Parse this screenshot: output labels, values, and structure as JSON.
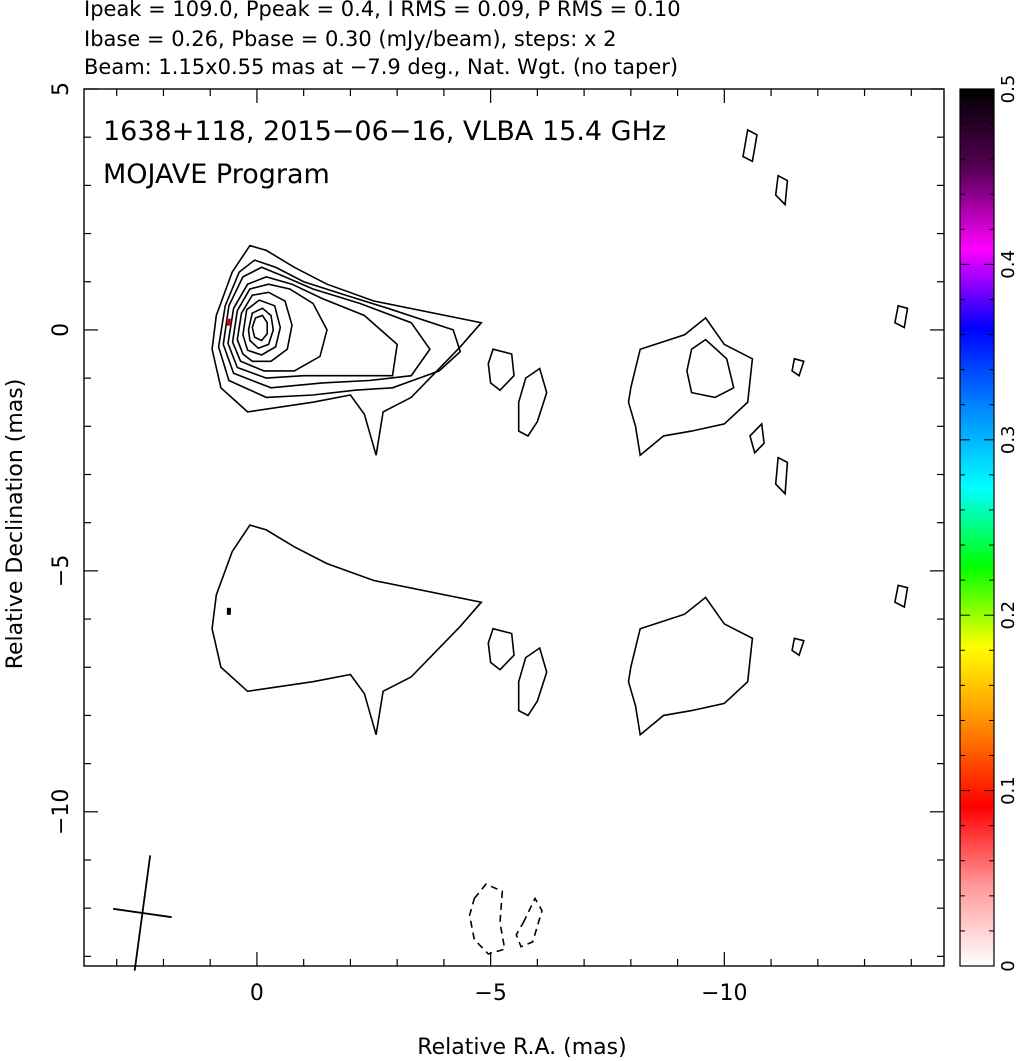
{
  "header": {
    "line1": "Ipeak = 109.0, Ppeak = 0.4, I RMS = 0.09, P RMS = 0.10",
    "line2": "Ibase = 0.26, Pbase = 0.30 (mJy/beam), steps: x 2",
    "line3": "Beam: 1.15x0.55 mas at −7.9 deg., Nat. Wgt. (no taper)"
  },
  "chart_data": {
    "type": "contour",
    "title": "1638+118, 2015−06−16, VLBA 15.4 GHz",
    "subtitle": "MOJAVE Program",
    "xlabel": "Relative R.A. (mas)",
    "ylabel": "Relative Declination (mas)",
    "xlim": [
      3.7,
      -14.7
    ],
    "ylim": [
      -13.2,
      5
    ],
    "x_ticks": [
      {
        "value": 0,
        "label": "0"
      },
      {
        "value": -5,
        "label": "−5"
      },
      {
        "value": -10,
        "label": "−10"
      }
    ],
    "y_ticks": [
      {
        "value": 5,
        "label": "5"
      },
      {
        "value": 0,
        "label": "0"
      },
      {
        "value": -5,
        "label": "−5"
      },
      {
        "value": -10,
        "label": "−10"
      }
    ],
    "colorbar": {
      "range": [
        0,
        0.5
      ],
      "ticks": [
        {
          "value": 0,
          "label": "0"
        },
        {
          "value": 0.1,
          "label": "0.1"
        },
        {
          "value": 0.2,
          "label": "0.2"
        },
        {
          "value": 0.3,
          "label": "0.3"
        },
        {
          "value": 0.4,
          "label": "0.4"
        },
        {
          "value": 0.5,
          "label": "0.5"
        }
      ],
      "colors": [
        "#ffffff",
        "#ff9999",
        "#ff0000",
        "#ff8800",
        "#ffff00",
        "#00ff00",
        "#00ffff",
        "#0088ff",
        "#0000ff",
        "#ff00ff",
        "#550055",
        "#000000"
      ]
    },
    "beam": {
      "major": 1.15,
      "minor": 0.55,
      "pa_deg": -7.9,
      "center": [
        2.45,
        -12.1
      ]
    },
    "contour_levels_mJy": [
      0.26,
      0.52,
      1.04,
      2.08,
      4.16,
      8.32,
      16.64,
      33.28,
      66.56
    ],
    "total_intensity_contours": [
      [
        [
          0.96,
          -0.4
        ],
        [
          0.87,
          0.3
        ],
        [
          0.53,
          1.2
        ],
        [
          0.15,
          1.75
        ],
        [
          -0.2,
          1.65
        ],
        [
          -0.8,
          1.3
        ],
        [
          -1.5,
          0.95
        ],
        [
          -2.5,
          0.6
        ],
        [
          -4.8,
          0.15
        ],
        [
          -4.35,
          -0.35
        ],
        [
          -3.3,
          -1.4
        ],
        [
          -2.7,
          -1.7
        ],
        [
          -2.55,
          -2.6
        ],
        [
          -2.3,
          -1.75
        ],
        [
          -2.0,
          -1.35
        ],
        [
          -1.2,
          -1.5
        ],
        [
          0.2,
          -1.7
        ],
        [
          0.77,
          -1.2
        ],
        [
          0.96,
          -0.4
        ]
      ],
      [
        [
          0.82,
          -0.35
        ],
        [
          0.68,
          0.5
        ],
        [
          0.38,
          1.2
        ],
        [
          0.05,
          1.45
        ],
        [
          -0.4,
          1.3
        ],
        [
          -1.0,
          1.0
        ],
        [
          -1.8,
          0.75
        ],
        [
          -2.8,
          0.45
        ],
        [
          -4.2,
          0.0
        ],
        [
          -4.35,
          -0.45
        ],
        [
          -3.9,
          -0.85
        ],
        [
          -2.9,
          -1.2
        ],
        [
          -2.1,
          -1.25
        ],
        [
          -1.2,
          -1.35
        ],
        [
          -0.2,
          -1.4
        ],
        [
          0.6,
          -1.05
        ],
        [
          0.82,
          -0.35
        ]
      ],
      [
        [
          0.72,
          -0.3
        ],
        [
          0.6,
          0.5
        ],
        [
          0.3,
          1.1
        ],
        [
          -0.1,
          1.3
        ],
        [
          -0.6,
          1.1
        ],
        [
          -1.2,
          0.85
        ],
        [
          -2.2,
          0.55
        ],
        [
          -3.3,
          0.15
        ],
        [
          -3.7,
          -0.4
        ],
        [
          -3.3,
          -0.95
        ],
        [
          -2.4,
          -1.05
        ],
        [
          -1.4,
          -1.1
        ],
        [
          -0.3,
          -1.2
        ],
        [
          0.5,
          -0.9
        ],
        [
          0.72,
          -0.3
        ]
      ],
      [
        [
          0.62,
          -0.28
        ],
        [
          0.5,
          0.45
        ],
        [
          0.2,
          0.95
        ],
        [
          -0.2,
          1.1
        ],
        [
          -0.75,
          0.95
        ],
        [
          -1.4,
          0.65
        ],
        [
          -2.3,
          0.3
        ],
        [
          -3.0,
          -0.3
        ],
        [
          -2.9,
          -0.95
        ],
        [
          -2.0,
          -0.95
        ],
        [
          -1.0,
          -0.95
        ],
        [
          -0.2,
          -1.0
        ],
        [
          0.42,
          -0.78
        ],
        [
          0.62,
          -0.28
        ]
      ],
      [
        [
          0.52,
          -0.25
        ],
        [
          0.42,
          0.4
        ],
        [
          0.15,
          0.85
        ],
        [
          -0.25,
          0.95
        ],
        [
          -0.7,
          0.85
        ],
        [
          -1.2,
          0.55
        ],
        [
          -1.5,
          0.0
        ],
        [
          -1.35,
          -0.55
        ],
        [
          -0.8,
          -0.85
        ],
        [
          -0.15,
          -0.85
        ],
        [
          0.35,
          -0.65
        ],
        [
          0.52,
          -0.25
        ]
      ],
      [
        [
          0.42,
          -0.2
        ],
        [
          0.33,
          0.35
        ],
        [
          0.1,
          0.72
        ],
        [
          -0.25,
          0.78
        ],
        [
          -0.6,
          0.6
        ],
        [
          -0.75,
          0.1
        ],
        [
          -0.65,
          -0.4
        ],
        [
          -0.3,
          -0.65
        ],
        [
          0.1,
          -0.65
        ],
        [
          0.3,
          -0.5
        ],
        [
          0.42,
          -0.2
        ]
      ],
      [
        [
          0.3,
          -0.1
        ],
        [
          0.22,
          0.42
        ],
        [
          -0.05,
          0.62
        ],
        [
          -0.38,
          0.5
        ],
        [
          -0.5,
          0.05
        ],
        [
          -0.4,
          -0.35
        ],
        [
          -0.1,
          -0.52
        ],
        [
          0.2,
          -0.42
        ],
        [
          0.3,
          -0.1
        ]
      ],
      [
        [
          0.18,
          0.0
        ],
        [
          0.1,
          0.35
        ],
        [
          -0.12,
          0.45
        ],
        [
          -0.3,
          0.3
        ],
        [
          -0.35,
          0.0
        ],
        [
          -0.25,
          -0.3
        ],
        [
          -0.03,
          -0.38
        ],
        [
          0.15,
          -0.22
        ],
        [
          0.18,
          0.0
        ]
      ],
      [
        [
          0.1,
          0.05
        ],
        [
          0.03,
          0.25
        ],
        [
          -0.12,
          0.3
        ],
        [
          -0.22,
          0.15
        ],
        [
          -0.22,
          -0.08
        ],
        [
          -0.1,
          -0.22
        ],
        [
          0.05,
          -0.15
        ],
        [
          0.1,
          0.05
        ]
      ],
      [
        [
          -5.05,
          -0.4
        ],
        [
          -5.45,
          -0.5
        ],
        [
          -5.5,
          -0.95
        ],
        [
          -5.2,
          -1.25
        ],
        [
          -5.0,
          -1.1
        ],
        [
          -4.95,
          -0.7
        ],
        [
          -5.05,
          -0.4
        ]
      ],
      [
        [
          -5.75,
          -1.0
        ],
        [
          -6.05,
          -0.8
        ],
        [
          -6.2,
          -1.3
        ],
        [
          -6.0,
          -1.9
        ],
        [
          -5.8,
          -2.2
        ],
        [
          -5.6,
          -2.1
        ],
        [
          -5.6,
          -1.5
        ],
        [
          -5.75,
          -1.0
        ]
      ],
      [
        [
          -8.2,
          -0.4
        ],
        [
          -9.15,
          -0.1
        ],
        [
          -9.6,
          0.25
        ],
        [
          -10.0,
          -0.3
        ],
        [
          -10.6,
          -0.6
        ],
        [
          -10.5,
          -1.5
        ],
        [
          -10.0,
          -1.95
        ],
        [
          -9.3,
          -2.1
        ],
        [
          -8.7,
          -2.2
        ],
        [
          -8.2,
          -2.6
        ],
        [
          -8.1,
          -2.0
        ],
        [
          -7.95,
          -1.5
        ],
        [
          -8.0,
          -1.2
        ],
        [
          -8.2,
          -0.4
        ]
      ],
      [
        [
          -9.3,
          -0.4
        ],
        [
          -9.6,
          -0.2
        ],
        [
          -10.05,
          -0.6
        ],
        [
          -10.2,
          -1.2
        ],
        [
          -9.8,
          -1.4
        ],
        [
          -9.3,
          -1.3
        ],
        [
          -9.2,
          -0.85
        ],
        [
          -9.3,
          -0.4
        ]
      ],
      [
        [
          -10.5,
          4.15
        ],
        [
          -10.7,
          4.05
        ],
        [
          -10.6,
          3.5
        ],
        [
          -10.4,
          3.6
        ],
        [
          -10.5,
          4.15
        ]
      ],
      [
        [
          -11.15,
          3.2
        ],
        [
          -11.35,
          3.1
        ],
        [
          -11.3,
          2.6
        ],
        [
          -11.1,
          2.8
        ],
        [
          -11.15,
          3.2
        ]
      ],
      [
        [
          -11.15,
          -2.65
        ],
        [
          -11.35,
          -2.75
        ],
        [
          -11.3,
          -3.4
        ],
        [
          -11.1,
          -3.2
        ],
        [
          -11.15,
          -2.65
        ]
      ],
      [
        [
          -10.8,
          -1.95
        ],
        [
          -10.55,
          -2.2
        ],
        [
          -10.65,
          -2.55
        ],
        [
          -10.85,
          -2.35
        ],
        [
          -10.8,
          -1.95
        ]
      ],
      [
        [
          -11.7,
          -0.65
        ],
        [
          -11.6,
          -0.95
        ],
        [
          -11.45,
          -0.85
        ],
        [
          -11.5,
          -0.6
        ],
        [
          -11.7,
          -0.65
        ]
      ],
      [
        [
          -13.92,
          0.45
        ],
        [
          -13.72,
          0.5
        ],
        [
          -13.65,
          0.15
        ],
        [
          -13.85,
          0.05
        ],
        [
          -13.92,
          0.45
        ]
      ]
    ],
    "polarization_contours": [
      [
        [
          0.96,
          -6.2
        ],
        [
          0.87,
          -5.5
        ],
        [
          0.53,
          -4.6
        ],
        [
          0.15,
          -4.05
        ],
        [
          -0.2,
          -4.15
        ],
        [
          -0.8,
          -4.5
        ],
        [
          -1.5,
          -4.85
        ],
        [
          -2.5,
          -5.2
        ],
        [
          -4.8,
          -5.65
        ],
        [
          -4.35,
          -6.15
        ],
        [
          -3.3,
          -7.2
        ],
        [
          -2.7,
          -7.5
        ],
        [
          -2.55,
          -8.4
        ],
        [
          -2.3,
          -7.55
        ],
        [
          -2.0,
          -7.15
        ],
        [
          -1.2,
          -7.3
        ],
        [
          0.2,
          -7.5
        ],
        [
          0.77,
          -7.0
        ],
        [
          0.96,
          -6.2
        ]
      ],
      [
        [
          -5.05,
          -6.2
        ],
        [
          -5.45,
          -6.3
        ],
        [
          -5.5,
          -6.75
        ],
        [
          -5.2,
          -7.05
        ],
        [
          -5.0,
          -6.9
        ],
        [
          -4.95,
          -6.5
        ],
        [
          -5.05,
          -6.2
        ]
      ],
      [
        [
          -5.75,
          -6.8
        ],
        [
          -6.05,
          -6.6
        ],
        [
          -6.2,
          -7.1
        ],
        [
          -6.0,
          -7.7
        ],
        [
          -5.8,
          -8.0
        ],
        [
          -5.6,
          -7.9
        ],
        [
          -5.6,
          -7.3
        ],
        [
          -5.75,
          -6.8
        ]
      ],
      [
        [
          -8.2,
          -6.2
        ],
        [
          -9.15,
          -5.9
        ],
        [
          -9.6,
          -5.55
        ],
        [
          -10.0,
          -6.1
        ],
        [
          -10.6,
          -6.4
        ],
        [
          -10.5,
          -7.3
        ],
        [
          -10.0,
          -7.75
        ],
        [
          -9.3,
          -7.9
        ],
        [
          -8.7,
          -8.0
        ],
        [
          -8.2,
          -8.4
        ],
        [
          -8.1,
          -7.8
        ],
        [
          -7.95,
          -7.3
        ],
        [
          -8.0,
          -7.0
        ],
        [
          -8.2,
          -6.2
        ]
      ],
      [
        [
          -11.7,
          -6.45
        ],
        [
          -11.6,
          -6.75
        ],
        [
          -11.45,
          -6.65
        ],
        [
          -11.5,
          -6.4
        ],
        [
          -11.7,
          -6.45
        ]
      ],
      [
        [
          -13.92,
          -5.35
        ],
        [
          -13.72,
          -5.3
        ],
        [
          -13.65,
          -5.65
        ],
        [
          -13.85,
          -5.75
        ],
        [
          -13.92,
          -5.35
        ]
      ]
    ],
    "negative_contours": [
      [
        [
          -4.65,
          -11.8
        ],
        [
          -4.9,
          -11.5
        ],
        [
          -5.25,
          -11.65
        ],
        [
          -5.2,
          -12.3
        ],
        [
          -5.3,
          -12.85
        ],
        [
          -4.95,
          -12.95
        ],
        [
          -4.65,
          -12.65
        ],
        [
          -4.55,
          -12.15
        ],
        [
          -4.65,
          -11.8
        ]
      ],
      [
        [
          -5.7,
          -12.3
        ],
        [
          -5.95,
          -11.8
        ],
        [
          -6.1,
          -12.05
        ],
        [
          -5.9,
          -12.7
        ],
        [
          -5.65,
          -12.8
        ],
        [
          -5.55,
          -12.55
        ],
        [
          -5.7,
          -12.3
        ]
      ]
    ],
    "peak_markers": [
      {
        "x": 0.6,
        "y": 0.15,
        "color": "#cc0000"
      },
      {
        "x": 0.6,
        "y": -5.85,
        "color": "#000000"
      }
    ]
  }
}
